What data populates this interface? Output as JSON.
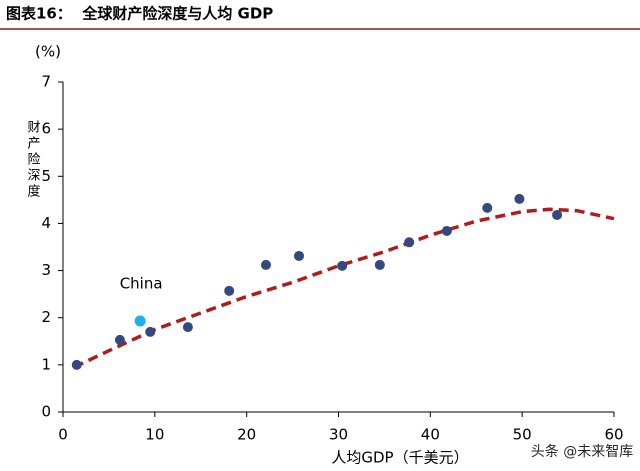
{
  "chart_data": {
    "type": "scatter",
    "title": "图表16：  全球财产险深度与人均 GDP",
    "y_unit": "(%)",
    "ylabel": "财产险深度",
    "xlabel": "人均GDP（千美元）",
    "xlim": [
      0,
      60
    ],
    "ylim": [
      0,
      7
    ],
    "xticks": [
      0,
      10,
      20,
      30,
      40,
      50,
      60
    ],
    "yticks": [
      0,
      1,
      2,
      3,
      4,
      5,
      6,
      7
    ],
    "series": [
      {
        "color": "#34497f",
        "x": [
          1.5,
          6.2,
          9.5,
          13.6,
          18.1,
          22.1,
          25.7,
          30.4,
          34.5,
          37.7,
          41.8,
          46.2,
          49.7,
          53.8
        ],
        "values": [
          1.0,
          1.53,
          1.7,
          1.8,
          2.57,
          3.12,
          3.31,
          3.1,
          3.12,
          3.6,
          3.84,
          4.33,
          4.52,
          4.18
        ]
      }
    ],
    "highlight": {
      "name": "China",
      "color": "#1fb0e8",
      "x": 8.4,
      "value": 1.93
    },
    "trend": {
      "type": "line",
      "color": "#b01c1c",
      "dashed": true,
      "x": [
        1.2,
        5,
        10,
        15,
        20,
        25,
        30,
        35,
        40,
        45,
        50,
        53,
        56,
        60
      ],
      "values": [
        0.95,
        1.3,
        1.75,
        2.1,
        2.45,
        2.75,
        3.1,
        3.4,
        3.75,
        4.05,
        4.25,
        4.3,
        4.27,
        4.1
      ]
    },
    "watermark": "头条 @未来智库"
  }
}
